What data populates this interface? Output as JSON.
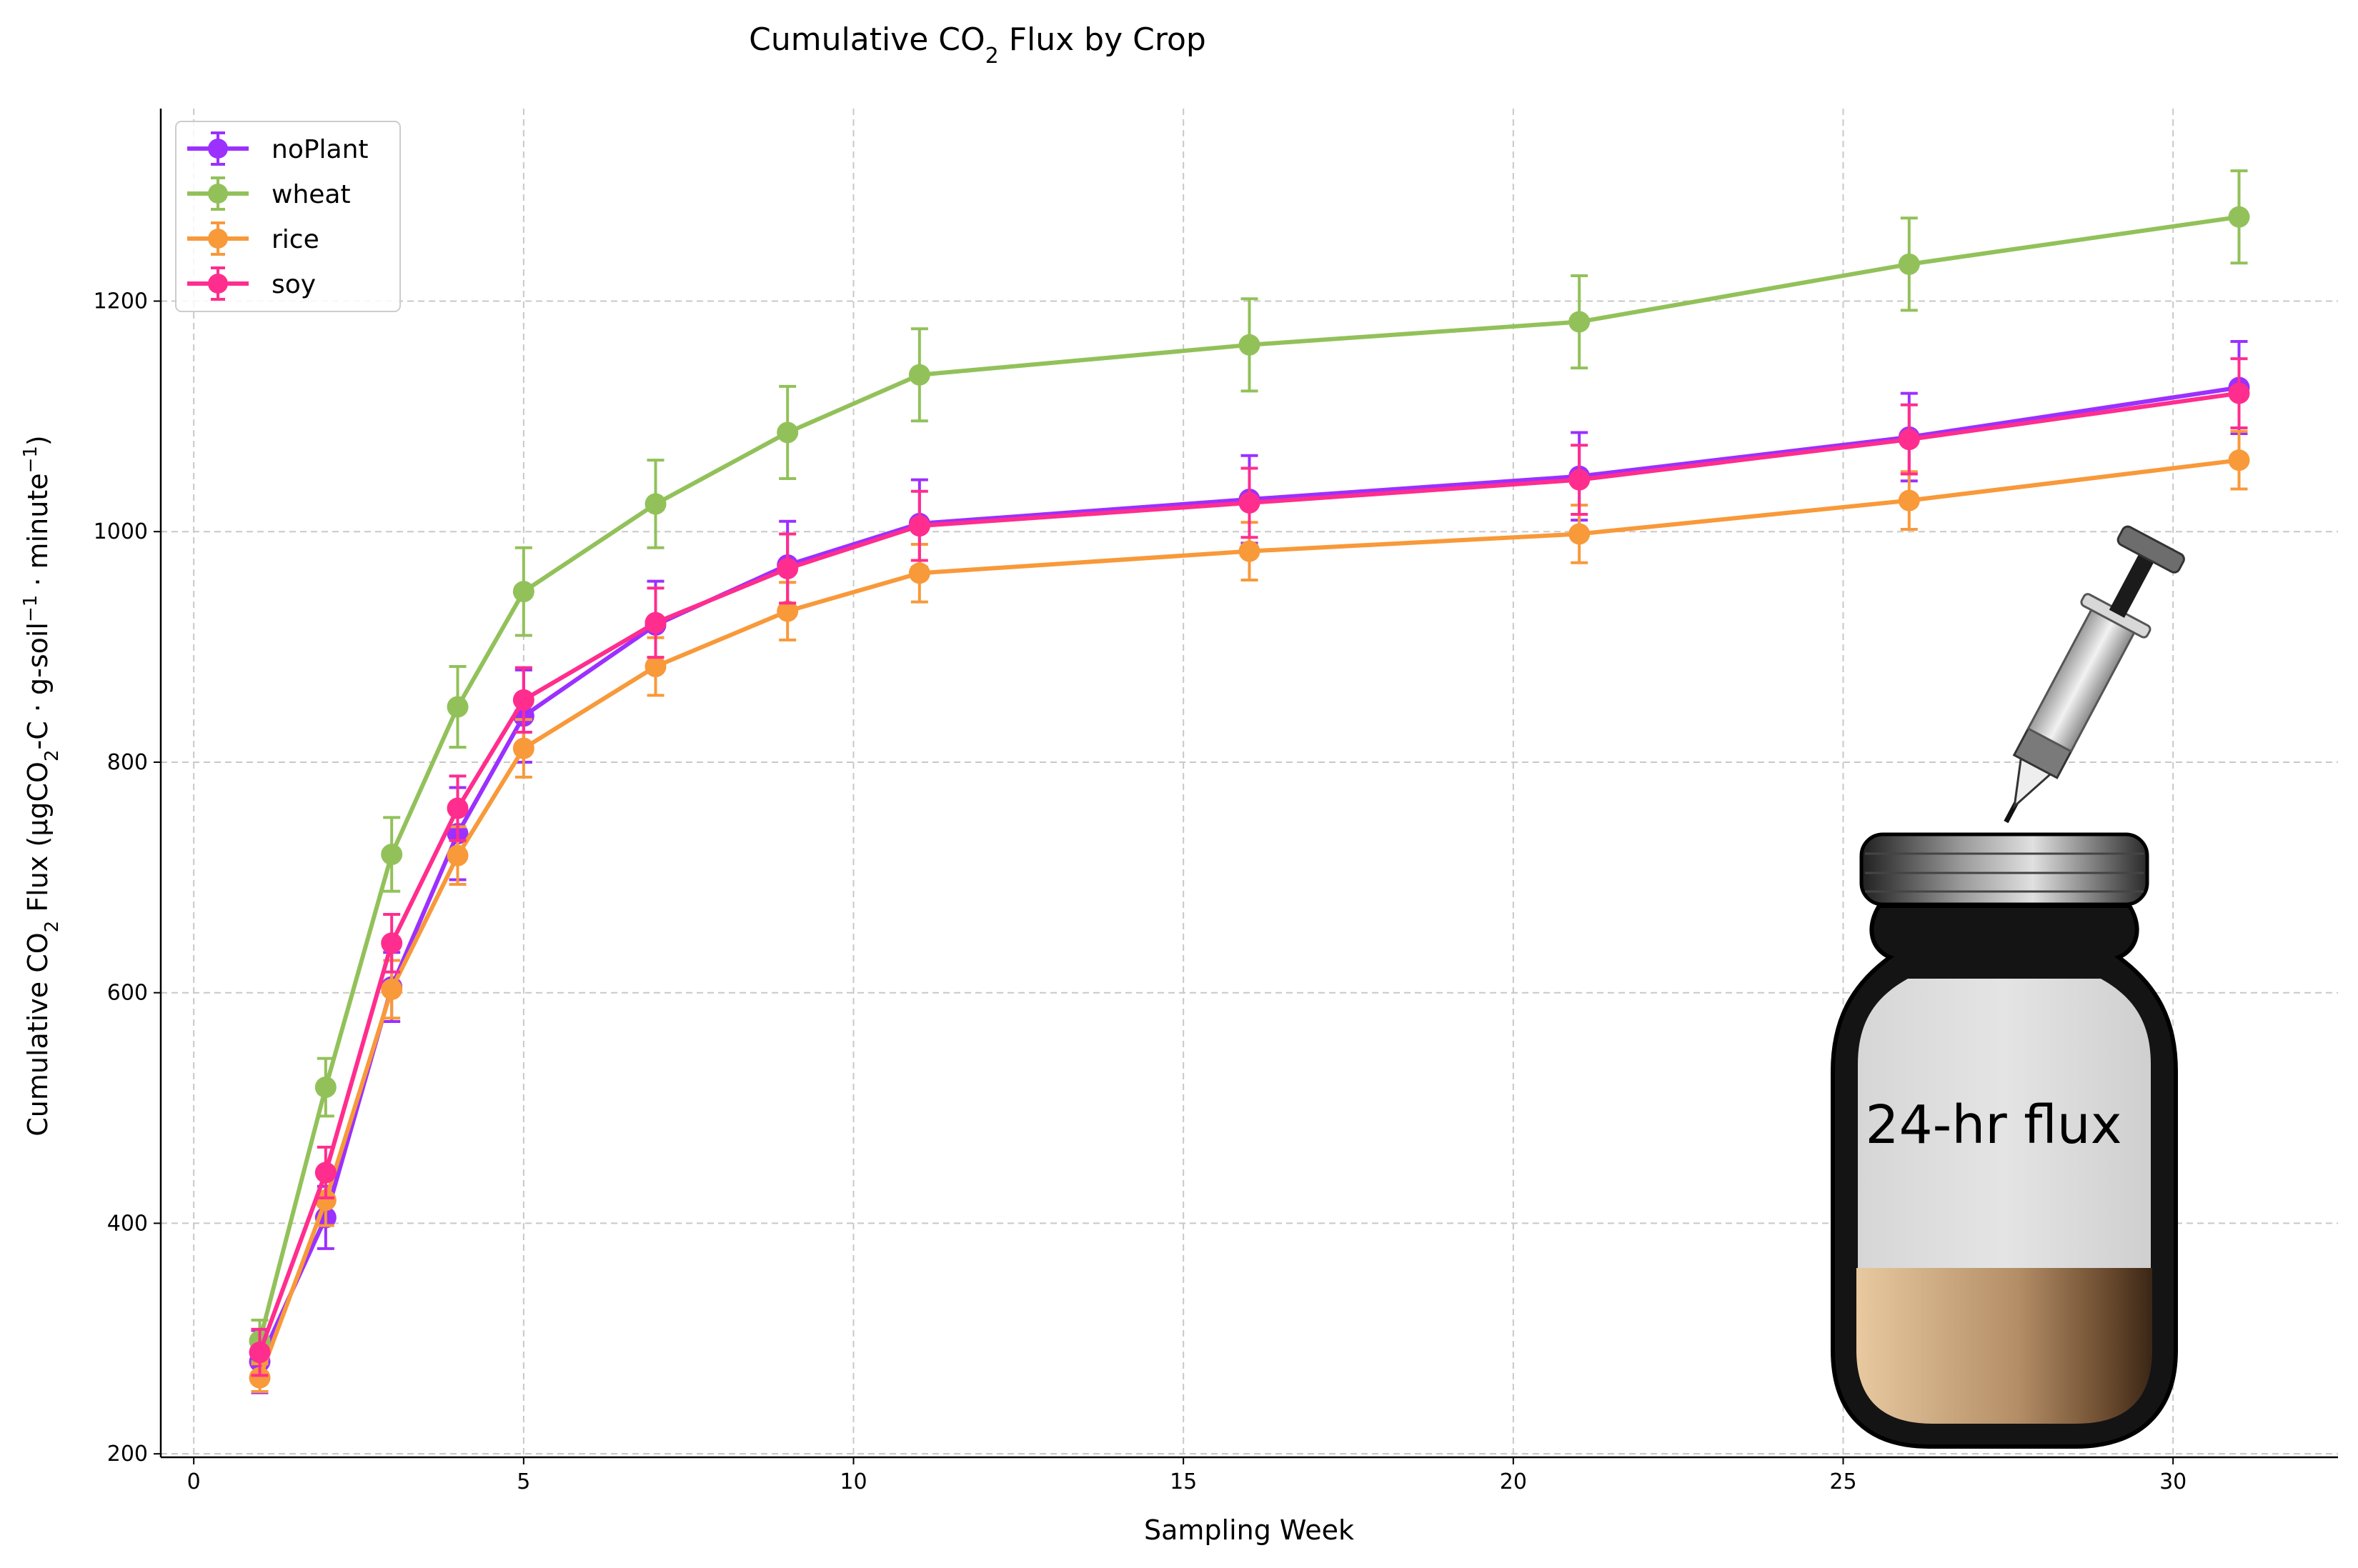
{
  "chart_data": {
    "type": "line",
    "title_main": "Cumulative CO",
    "title_sub": "2",
    "title_rest": " Flux by Crop",
    "xlabel": "Sampling Week",
    "ylabel_parts": {
      "a": "Cumulative CO",
      "b": "2",
      "c": " Flux (μgCO",
      "d": "2",
      "e": "-C · g-soil",
      "f": "−1",
      "g": " · minute",
      "h": "−1",
      "i": ")"
    },
    "xlim": [
      -0.5,
      32.5
    ],
    "ylim": [
      197,
      1367
    ],
    "xticks": [
      0,
      5,
      10,
      15,
      20,
      25,
      30
    ],
    "yticks": [
      200,
      400,
      600,
      800,
      1000,
      1200
    ],
    "grid": true,
    "legend_position": "top-left",
    "x": [
      1,
      2,
      3,
      4,
      5,
      7,
      9,
      11,
      16,
      21,
      26,
      31
    ],
    "series": [
      {
        "name": "noPlant",
        "color": "#9b30ff",
        "values": [
          280,
          405,
          605,
          738,
          840,
          919,
          971,
          1007,
          1028,
          1048,
          1082,
          1125
        ],
        "errors": [
          27,
          27,
          30,
          40,
          40,
          38,
          38,
          38,
          38,
          38,
          38,
          40
        ]
      },
      {
        "name": "wheat",
        "color": "#92c15a",
        "values": [
          298,
          518,
          720,
          848,
          948,
          1024,
          1086,
          1136,
          1162,
          1182,
          1232,
          1273
        ],
        "errors": [
          18,
          25,
          32,
          35,
          38,
          38,
          40,
          40,
          40,
          40,
          40,
          40
        ]
      },
      {
        "name": "rice",
        "color": "#f8993a",
        "values": [
          266,
          420,
          603,
          719,
          812,
          883,
          931,
          964,
          983,
          998,
          1027,
          1062
        ],
        "errors": [
          12,
          22,
          25,
          25,
          25,
          25,
          25,
          25,
          25,
          25,
          25,
          25
        ]
      },
      {
        "name": "soy",
        "color": "#ff2d8e",
        "values": [
          288,
          444,
          643,
          760,
          854,
          921,
          968,
          1005,
          1025,
          1045,
          1080,
          1120
        ],
        "errors": [
          20,
          22,
          25,
          28,
          28,
          30,
          30,
          30,
          30,
          30,
          30,
          30
        ]
      }
    ],
    "annotation": "24-hr flux"
  }
}
